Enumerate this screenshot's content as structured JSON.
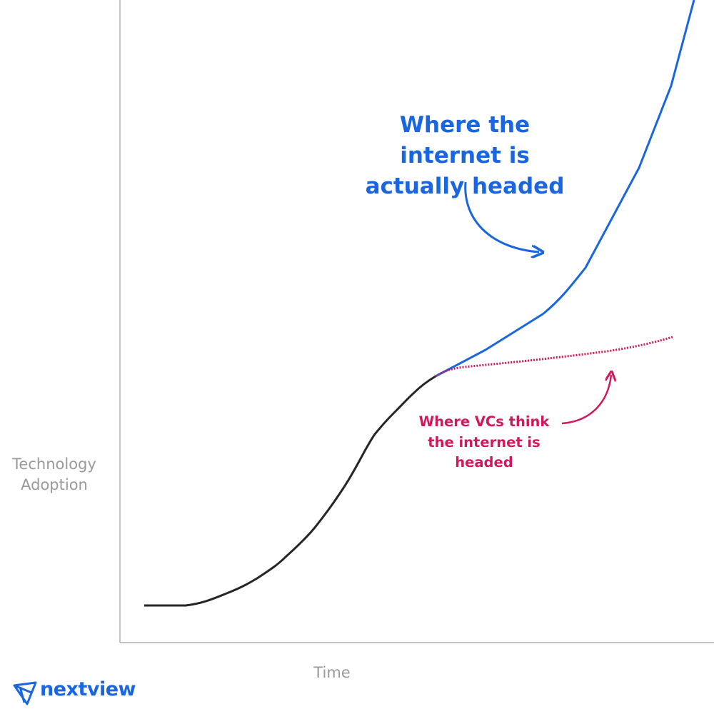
{
  "axes": {
    "y_label": "Technology Adoption",
    "x_label": "Time"
  },
  "annotations": {
    "actual": "Where the internet is actually headed",
    "vcs": "Where VCs think the internet is headed"
  },
  "logo": {
    "text": "nextview"
  }
}
